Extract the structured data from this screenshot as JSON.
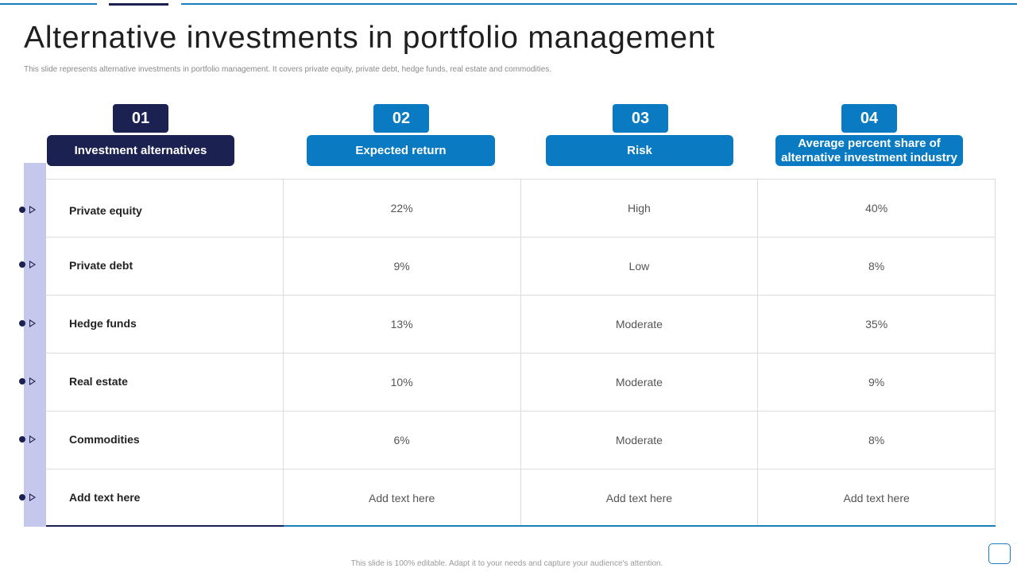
{
  "title": "Alternative investments in portfolio management",
  "subtitle": "This slide represents alternative investments in portfolio management.  It covers private equity, private debt, hedge funds, real estate and commodities.",
  "columns": [
    {
      "number": "01",
      "label": "Investment alternatives"
    },
    {
      "number": "02",
      "label": "Expected return"
    },
    {
      "number": "03",
      "label": "Risk"
    },
    {
      "number": "04",
      "label": "Average percent share of alternative investment industry"
    }
  ],
  "rows": [
    {
      "name": "Private equity",
      "return": "22%",
      "risk": "High",
      "share": "40%"
    },
    {
      "name": "Private debt",
      "return": "9%",
      "risk": "Low",
      "share": "8%"
    },
    {
      "name": "Hedge funds",
      "return": "13%",
      "risk": "Moderate",
      "share": "35%"
    },
    {
      "name": "Real estate",
      "return": "10%",
      "risk": "Moderate",
      "share": "9%"
    },
    {
      "name": "Commodities",
      "return": "6%",
      "risk": "Moderate",
      "share": "8%"
    },
    {
      "name": "Add  text here",
      "return": "Add text here",
      "risk": "Add text here",
      "share": "Add text here"
    }
  ],
  "footer": "This slide is 100% editable.  Adapt it to your needs and capture your audience's attention.",
  "colors": {
    "dark_navy": "#1b2150",
    "accent_blue": "#0a7bc2",
    "lavender": "#c5c8ec"
  }
}
